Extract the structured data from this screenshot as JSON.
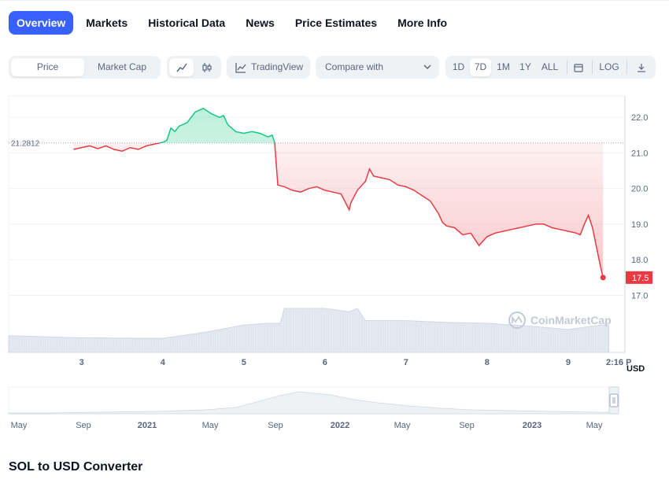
{
  "tabs": [
    {
      "label": "Overview",
      "active": true
    },
    {
      "label": "Markets",
      "active": false
    },
    {
      "label": "Historical Data",
      "active": false
    },
    {
      "label": "News",
      "active": false
    },
    {
      "label": "Price Estimates",
      "active": false
    },
    {
      "label": "More Info",
      "active": false
    }
  ],
  "toolbar": {
    "price_label": "Price",
    "market_cap_label": "Market Cap",
    "tradingview_label": "TradingView",
    "compare_label": "Compare with",
    "time_ranges": [
      "1D",
      "7D",
      "1M",
      "1Y",
      "ALL"
    ],
    "selected_range": "7D",
    "log_label": "LOG",
    "icons": [
      "line-chart-icon",
      "candlestick-icon",
      "tradingview-icon",
      "chevron-down-icon",
      "calendar-icon",
      "download-icon"
    ]
  },
  "chart_data": {
    "type": "line",
    "title": "",
    "xlabel": "",
    "ylabel": "",
    "currency_label": "USD",
    "x_ticks": [
      "3",
      "4",
      "5",
      "6",
      "7",
      "8",
      "9",
      "2:16 P"
    ],
    "y_ticks": [
      17.0,
      18.0,
      19.0,
      20.0,
      21.0,
      22.0
    ],
    "ylim": [
      16.9,
      22.6
    ],
    "baseline_value": 21.2812,
    "baseline_label": "21.2812",
    "current_value": 17.5,
    "current_label": "17.5",
    "x_range_days": [
      2.1,
      9.7
    ],
    "series": [
      {
        "x": [
          2.9,
          3.0,
          3.1,
          3.2,
          3.3,
          3.4,
          3.5,
          3.6,
          3.7,
          3.8,
          3.9,
          4.0,
          4.05,
          4.1,
          4.15,
          4.2,
          4.3,
          4.4,
          4.5,
          4.6,
          4.7,
          4.75,
          4.8,
          4.9,
          5.0,
          5.1,
          5.2,
          5.3,
          5.35,
          5.38,
          5.42,
          5.5,
          5.6,
          5.7,
          5.8,
          5.9,
          6.0,
          6.1,
          6.2,
          6.3,
          6.32,
          6.4,
          6.5,
          6.55,
          6.6,
          6.7,
          6.8,
          6.9,
          7.0,
          7.1,
          7.2,
          7.3,
          7.4,
          7.45,
          7.5,
          7.6,
          7.7,
          7.8,
          7.9,
          8.0,
          8.1,
          8.2,
          8.3,
          8.4,
          8.5,
          8.6,
          8.7,
          8.8,
          8.9,
          9.0,
          9.1,
          9.15,
          9.2,
          9.25,
          9.3,
          9.35,
          9.4,
          9.43
        ],
        "y": [
          21.1,
          21.15,
          21.2,
          21.12,
          21.2,
          21.1,
          21.05,
          21.15,
          21.1,
          21.2,
          21.25,
          21.3,
          21.35,
          21.7,
          21.6,
          21.75,
          21.85,
          22.15,
          22.25,
          22.1,
          22.0,
          22.05,
          21.8,
          21.6,
          21.55,
          21.6,
          21.55,
          21.45,
          21.5,
          21.3,
          20.1,
          20.05,
          19.95,
          19.9,
          20.0,
          20.05,
          19.95,
          19.9,
          19.85,
          19.4,
          19.6,
          19.95,
          20.2,
          20.55,
          20.35,
          20.3,
          20.25,
          20.1,
          20.05,
          19.95,
          19.8,
          19.65,
          19.3,
          19.05,
          18.95,
          18.9,
          18.7,
          18.75,
          18.4,
          18.65,
          18.75,
          18.8,
          18.85,
          18.9,
          18.95,
          19.0,
          19.0,
          18.9,
          18.85,
          18.8,
          18.75,
          18.7,
          19.0,
          19.25,
          18.9,
          18.35,
          17.8,
          17.5
        ]
      }
    ],
    "volume": {
      "x": [
        2.1,
        3.0,
        4.0,
        4.5,
        5.0,
        5.3,
        5.45,
        5.5,
        6.0,
        6.3,
        6.4,
        6.5,
        7.0,
        7.5,
        8.0,
        8.5,
        9.0,
        9.4,
        9.5
      ],
      "values": [
        0.38,
        0.33,
        0.32,
        0.45,
        0.62,
        0.66,
        0.66,
        1.0,
        1.0,
        0.92,
        1.0,
        0.72,
        0.72,
        0.68,
        0.66,
        0.6,
        0.52,
        0.62,
        0.62
      ]
    },
    "watermark": "CoinMarketCap"
  },
  "navigator": {
    "labels": [
      "May",
      "Sep",
      "2021",
      "May",
      "Sep",
      "2022",
      "May",
      "Sep",
      "2023",
      "May"
    ],
    "bold_labels": [
      "2021",
      "2022",
      "2023"
    ],
    "handle_icon": "drag-handle-icon"
  },
  "converter_title": "SOL to USD Converter",
  "colors": {
    "accent": "#3861fb",
    "up": "#16c784",
    "down": "#ea3943",
    "axis_text": "#58667e",
    "grid": "#eff2f5",
    "volume": "#cfd6e4"
  }
}
